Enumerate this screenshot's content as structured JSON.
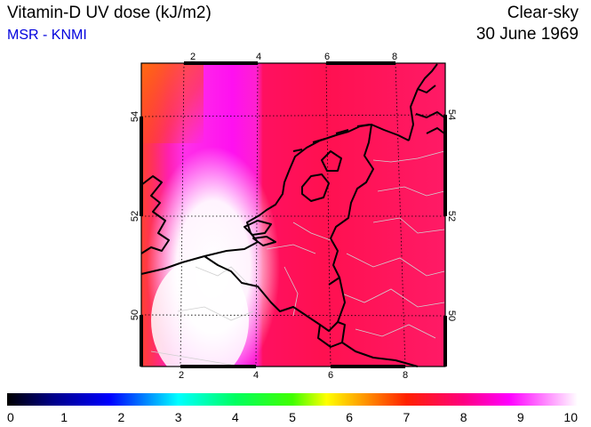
{
  "header": {
    "title": "Vitamin-D UV dose (kJ/m2)",
    "subtitle": "MSR - KNMI",
    "condition": "Clear-sky",
    "date": "30 June 1969"
  },
  "map": {
    "lon_ticks": [
      "2",
      "4",
      "6",
      "8"
    ],
    "lat_ticks": [
      "54",
      "52",
      "50"
    ],
    "colors": {
      "frame": "#000000",
      "coast": "#000000",
      "inner_border": "#d0d0d0",
      "grid": "#000000"
    }
  },
  "colorbar": {
    "labels": [
      "0",
      "1",
      "2",
      "3",
      "4",
      "5",
      "6",
      "7",
      "8",
      "9",
      "10"
    ],
    "range": [
      0,
      10
    ]
  }
}
